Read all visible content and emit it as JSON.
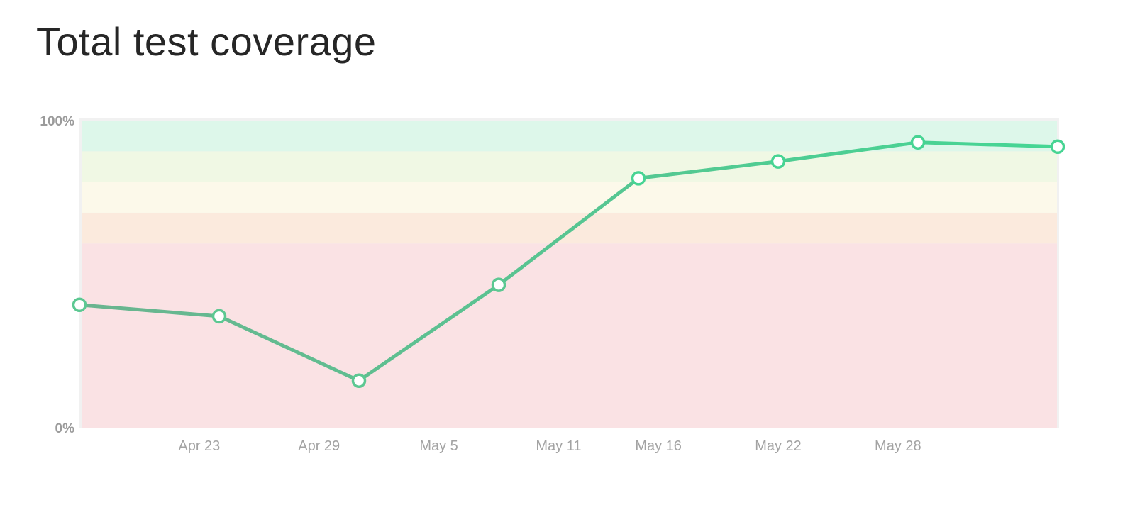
{
  "title": "Total test coverage",
  "chart_data": {
    "type": "line",
    "title": "Total test coverage",
    "xlabel": "",
    "ylabel": "",
    "ylim": [
      0,
      100
    ],
    "y_ticks": [
      "0%",
      "100%"
    ],
    "x_ticks": [
      "Apr 23",
      "Apr 29",
      "May 5",
      "May 11",
      "May 16",
      "May 22",
      "May 28"
    ],
    "series": [
      {
        "points": [
          {
            "x": "Apr 17",
            "y": 40
          },
          {
            "x": "Apr 24",
            "y": 36.3
          },
          {
            "x": "May 1",
            "y": 15.3
          },
          {
            "x": "May 8",
            "y": 46.5
          },
          {
            "x": "May 15",
            "y": 81.2
          },
          {
            "x": "May 22",
            "y": 86.7
          },
          {
            "x": "May 29",
            "y": 92.9
          },
          {
            "x": "Jun 5",
            "y": 91.5
          }
        ]
      }
    ],
    "bands": [
      {
        "from": 0,
        "to": 60,
        "color": "#fae2e4"
      },
      {
        "from": 60,
        "to": 70,
        "color": "#fbeadd"
      },
      {
        "from": 70,
        "to": 80,
        "color": "#fcf9ea"
      },
      {
        "from": 80,
        "to": 90,
        "color": "#f0f8e4"
      },
      {
        "from": 90,
        "to": 100,
        "color": "#ddf7ea"
      }
    ],
    "line_color_start": "#6ab48f",
    "line_color_end": "#45d694",
    "grid": false,
    "legend": "none"
  }
}
